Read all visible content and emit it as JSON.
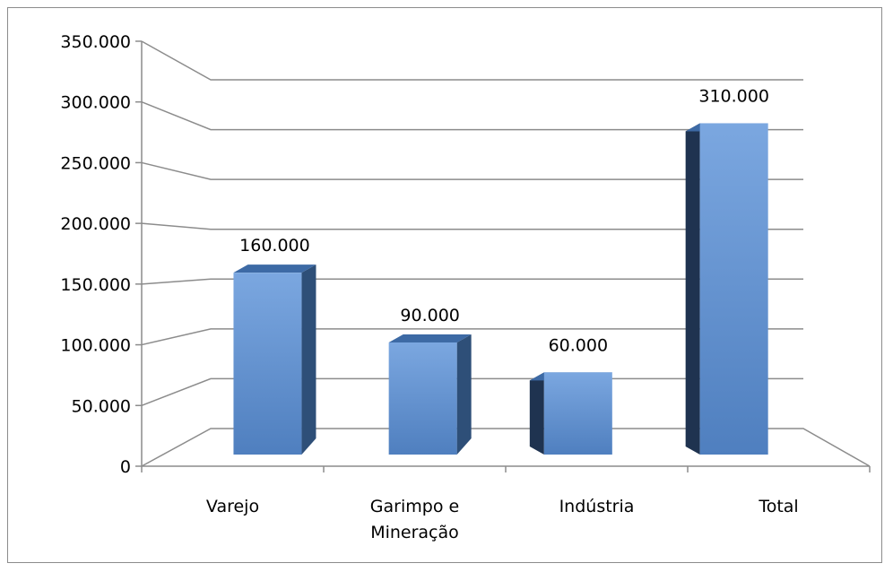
{
  "chart_data": {
    "type": "bar",
    "categories": [
      "Varejo",
      "Garimpo e Mineração",
      "Indústria",
      "Total"
    ],
    "category_label_lines": [
      [
        "Varejo"
      ],
      [
        "Garimpo e",
        "Mineração"
      ],
      [
        "Indústria"
      ],
      [
        "Total"
      ]
    ],
    "values": [
      160000,
      90000,
      60000,
      310000
    ],
    "value_labels": [
      "160.000",
      "90.000",
      "60.000",
      "310.000"
    ],
    "y_ticks": [
      0,
      50000,
      100000,
      150000,
      200000,
      250000,
      300000,
      350000
    ],
    "y_tick_labels": [
      "0",
      "50.000",
      "100.000",
      "150.000",
      "200.000",
      "250.000",
      "300.000",
      "350.000"
    ],
    "ylim": [
      0,
      350000
    ],
    "title": "",
    "xlabel": "",
    "ylabel": "",
    "grid": true,
    "legend": "none",
    "style": "3d-perspective-columns",
    "colors": {
      "bar_front_light": "#7ba7e0",
      "bar_front_dark": "#4f7fbf",
      "bar_side": "#2e4f78",
      "bar_side_dark": "#1f3350",
      "bar_top": "#3d6aa5",
      "grid": "#8c8c8c",
      "axis": "#8c8c8c"
    }
  }
}
